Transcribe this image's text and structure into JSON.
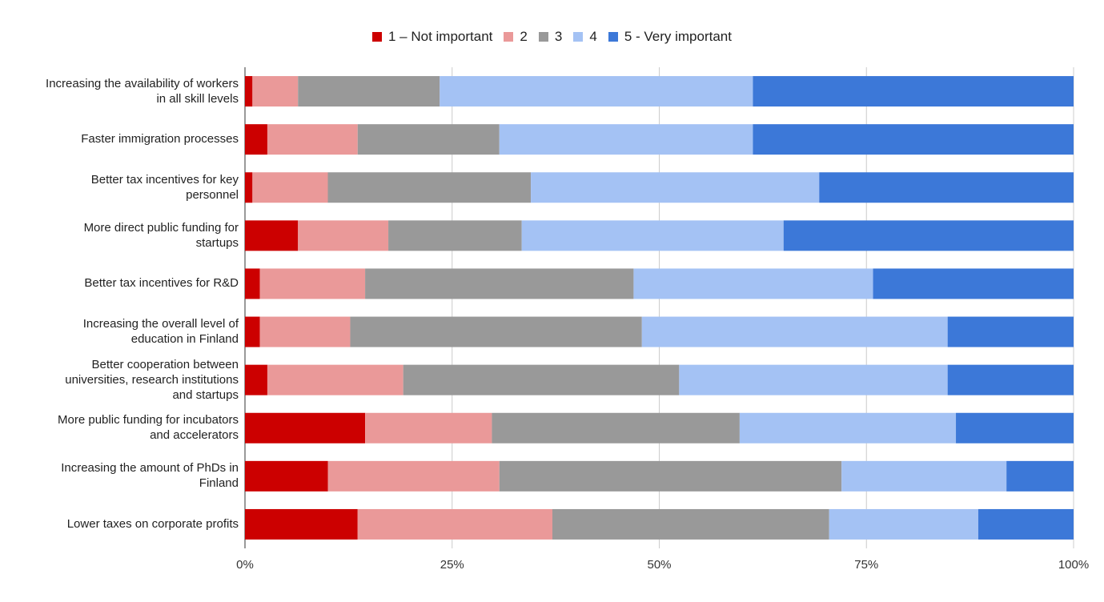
{
  "chart_data": {
    "type": "bar",
    "orientation": "horizontal",
    "stacked": true,
    "percent_stacked": true,
    "title": "",
    "legend_position": "top",
    "grid": true,
    "xlim": [
      0,
      100
    ],
    "x_ticks": [
      "0%",
      "25%",
      "50%",
      "75%",
      "100%"
    ],
    "categories": [
      [
        "Increasing the availability of workers",
        "in all skill levels"
      ],
      [
        "Faster immigration processes"
      ],
      [
        "Better tax incentives for key",
        "personnel"
      ],
      [
        "More direct public funding for",
        "startups"
      ],
      [
        "Better tax incentives for R&D"
      ],
      [
        "Increasing the overall level of",
        "education in Finland"
      ],
      [
        "Better cooperation between",
        "universities, research institutions",
        "and startups"
      ],
      [
        "More public funding for incubators",
        "and accelerators"
      ],
      [
        "Increasing the amount of PhDs in",
        "Finland"
      ],
      [
        "Lower taxes on corporate profits"
      ]
    ],
    "series": [
      {
        "name": "1 – Not important",
        "color": "#cc0000",
        "values": [
          0.9,
          2.7,
          0.9,
          6.4,
          1.8,
          1.8,
          2.7,
          14.5,
          10.0,
          13.6
        ]
      },
      {
        "name": "2",
        "color": "#ea9999",
        "values": [
          5.5,
          10.9,
          9.1,
          10.9,
          12.7,
          10.9,
          16.4,
          15.3,
          20.7,
          23.5
        ]
      },
      {
        "name": "3",
        "color": "#999999",
        "values": [
          17.1,
          17.1,
          24.5,
          16.1,
          32.4,
          35.2,
          33.3,
          29.9,
          41.3,
          33.4
        ]
      },
      {
        "name": "4",
        "color": "#a4c2f4",
        "values": [
          37.8,
          30.6,
          34.8,
          31.6,
          28.9,
          36.9,
          32.4,
          26.1,
          19.9,
          18.0
        ]
      },
      {
        "name": "5 - Very important",
        "color": "#3c78d8",
        "values": [
          38.7,
          38.7,
          30.7,
          35.0,
          24.2,
          15.2,
          15.2,
          14.2,
          8.1,
          11.5
        ]
      }
    ]
  }
}
